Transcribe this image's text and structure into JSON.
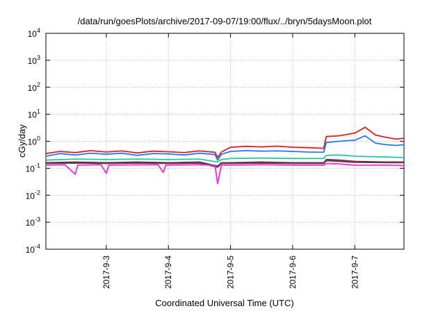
{
  "chart_data": {
    "type": "line",
    "title": "/data/run/goesPlots/archive/2017-09-07/19:00/flux/../bryn/5daysMoon.plot",
    "xlabel": "Coordinated Universal Time (UTC)",
    "ylabel": "cGy/day",
    "yscale": "log",
    "ylim": [
      0.0001,
      10000
    ],
    "xlim": [
      "2017-09-02 00:40",
      "2017-09-07 19:00"
    ],
    "x_ticks": [
      {
        "value": "2017-09-03",
        "label": "2017-9-3"
      },
      {
        "value": "2017-09-04",
        "label": "2017-9-4"
      },
      {
        "value": "2017-09-05",
        "label": "2017-9-5"
      },
      {
        "value": "2017-09-06",
        "label": "2017-9-6"
      },
      {
        "value": "2017-09-07",
        "label": "2017-9-7"
      }
    ],
    "y_ticks": [
      {
        "value": 0.0001,
        "base": "10",
        "exp": "-4"
      },
      {
        "value": 0.001,
        "base": "10",
        "exp": "-3"
      },
      {
        "value": 0.01,
        "base": "10",
        "exp": "-2"
      },
      {
        "value": 0.1,
        "base": "10",
        "exp": "-1"
      },
      {
        "value": 1,
        "base": "10",
        "exp": "0"
      },
      {
        "value": 10,
        "base": "10",
        "exp": "1"
      },
      {
        "value": 100,
        "base": "10",
        "exp": "2"
      },
      {
        "value": 1000,
        "base": "10",
        "exp": "3"
      },
      {
        "value": 10000,
        "base": "10",
        "exp": "4"
      }
    ],
    "grid": true,
    "series": [
      {
        "color": "#e31a1c",
        "points": [
          [
            "2017-09-02 00:40",
            0.35
          ],
          [
            "2017-09-02 06:00",
            0.42
          ],
          [
            "2017-09-02 12:00",
            0.38
          ],
          [
            "2017-09-02 18:00",
            0.45
          ],
          [
            "2017-09-03 00:00",
            0.4
          ],
          [
            "2017-09-03 06:00",
            0.44
          ],
          [
            "2017-09-03 12:00",
            0.37
          ],
          [
            "2017-09-03 18:00",
            0.43
          ],
          [
            "2017-09-04 00:00",
            0.41
          ],
          [
            "2017-09-04 06:00",
            0.38
          ],
          [
            "2017-09-04 12:00",
            0.44
          ],
          [
            "2017-09-04 18:00",
            0.39
          ],
          [
            "2017-09-04 19:00",
            0.25
          ],
          [
            "2017-09-04 20:30",
            0.4
          ],
          [
            "2017-09-05 00:00",
            0.6
          ],
          [
            "2017-09-05 06:00",
            0.65
          ],
          [
            "2017-09-05 12:00",
            0.62
          ],
          [
            "2017-09-05 18:00",
            0.66
          ],
          [
            "2017-09-06 00:00",
            0.6
          ],
          [
            "2017-09-06 06:00",
            0.58
          ],
          [
            "2017-09-06 12:00",
            0.55
          ],
          [
            "2017-09-06 13:00",
            1.5
          ],
          [
            "2017-09-06 18:00",
            1.6
          ],
          [
            "2017-09-07 00:00",
            2.0
          ],
          [
            "2017-09-07 04:00",
            3.3
          ],
          [
            "2017-09-07 08:00",
            1.7
          ],
          [
            "2017-09-07 12:00",
            1.4
          ],
          [
            "2017-09-07 16:00",
            1.2
          ],
          [
            "2017-09-07 19:00",
            1.3
          ]
        ]
      },
      {
        "color": "#1f78ff",
        "points": [
          [
            "2017-09-02 00:40",
            0.28
          ],
          [
            "2017-09-02 06:00",
            0.35
          ],
          [
            "2017-09-02 12:00",
            0.31
          ],
          [
            "2017-09-02 18:00",
            0.36
          ],
          [
            "2017-09-03 00:00",
            0.33
          ],
          [
            "2017-09-03 06:00",
            0.36
          ],
          [
            "2017-09-03 12:00",
            0.3
          ],
          [
            "2017-09-03 18:00",
            0.35
          ],
          [
            "2017-09-04 00:00",
            0.34
          ],
          [
            "2017-09-04 06:00",
            0.31
          ],
          [
            "2017-09-04 12:00",
            0.36
          ],
          [
            "2017-09-04 18:00",
            0.32
          ],
          [
            "2017-09-04 19:00",
            0.2
          ],
          [
            "2017-09-04 20:30",
            0.33
          ],
          [
            "2017-09-05 00:00",
            0.42
          ],
          [
            "2017-09-05 06:00",
            0.45
          ],
          [
            "2017-09-05 12:00",
            0.43
          ],
          [
            "2017-09-05 18:00",
            0.44
          ],
          [
            "2017-09-06 00:00",
            0.42
          ],
          [
            "2017-09-06 06:00",
            0.4
          ],
          [
            "2017-09-06 12:00",
            0.39
          ],
          [
            "2017-09-06 13:00",
            0.9
          ],
          [
            "2017-09-06 18:00",
            1.0
          ],
          [
            "2017-09-07 00:00",
            1.1
          ],
          [
            "2017-09-07 04:00",
            1.6
          ],
          [
            "2017-09-07 08:00",
            0.85
          ],
          [
            "2017-09-07 12:00",
            0.75
          ],
          [
            "2017-09-07 16:00",
            0.7
          ],
          [
            "2017-09-07 19:00",
            0.75
          ]
        ]
      },
      {
        "color": "#20c9a0",
        "points": [
          [
            "2017-09-02 00:40",
            0.2
          ],
          [
            "2017-09-02 12:00",
            0.22
          ],
          [
            "2017-09-03 00:00",
            0.21
          ],
          [
            "2017-09-03 12:00",
            0.22
          ],
          [
            "2017-09-04 00:00",
            0.21
          ],
          [
            "2017-09-04 12:00",
            0.22
          ],
          [
            "2017-09-04 19:00",
            0.17
          ],
          [
            "2017-09-04 20:30",
            0.21
          ],
          [
            "2017-09-05 00:00",
            0.23
          ],
          [
            "2017-09-05 12:00",
            0.24
          ],
          [
            "2017-09-06 00:00",
            0.23
          ],
          [
            "2017-09-06 12:00",
            0.23
          ],
          [
            "2017-09-06 13:00",
            0.3
          ],
          [
            "2017-09-06 18:00",
            0.31
          ],
          [
            "2017-09-07 00:00",
            0.28
          ],
          [
            "2017-09-07 12:00",
            0.26
          ],
          [
            "2017-09-07 19:00",
            0.25
          ]
        ]
      },
      {
        "color": "#8b1a3a",
        "points": [
          [
            "2017-09-02 00:40",
            0.16
          ],
          [
            "2017-09-02 12:00",
            0.17
          ],
          [
            "2017-09-03 00:00",
            0.16
          ],
          [
            "2017-09-03 12:00",
            0.17
          ],
          [
            "2017-09-04 00:00",
            0.16
          ],
          [
            "2017-09-04 12:00",
            0.17
          ],
          [
            "2017-09-04 19:00",
            0.12
          ],
          [
            "2017-09-04 20:30",
            0.16
          ],
          [
            "2017-09-05 00:00",
            0.16
          ],
          [
            "2017-09-05 12:00",
            0.17
          ],
          [
            "2017-09-06 00:00",
            0.16
          ],
          [
            "2017-09-06 12:00",
            0.16
          ],
          [
            "2017-09-06 13:00",
            0.21
          ],
          [
            "2017-09-06 18:00",
            0.2
          ],
          [
            "2017-09-07 00:00",
            0.18
          ],
          [
            "2017-09-07 12:00",
            0.17
          ],
          [
            "2017-09-07 19:00",
            0.17
          ]
        ]
      },
      {
        "color": "#4a4a4a",
        "points": [
          [
            "2017-09-02 00:40",
            0.15
          ],
          [
            "2017-09-02 12:00",
            0.155
          ],
          [
            "2017-09-03 00:00",
            0.15
          ],
          [
            "2017-09-03 12:00",
            0.155
          ],
          [
            "2017-09-04 00:00",
            0.15
          ],
          [
            "2017-09-04 12:00",
            0.155
          ],
          [
            "2017-09-04 19:00",
            0.11
          ],
          [
            "2017-09-04 20:30",
            0.15
          ],
          [
            "2017-09-05 00:00",
            0.15
          ],
          [
            "2017-09-05 12:00",
            0.155
          ],
          [
            "2017-09-06 00:00",
            0.15
          ],
          [
            "2017-09-06 12:00",
            0.15
          ],
          [
            "2017-09-06 13:00",
            0.19
          ],
          [
            "2017-09-06 18:00",
            0.18
          ],
          [
            "2017-09-07 00:00",
            0.165
          ],
          [
            "2017-09-07 12:00",
            0.16
          ],
          [
            "2017-09-07 19:00",
            0.16
          ]
        ]
      },
      {
        "color": "#ff22dd",
        "points": [
          [
            "2017-09-02 00:40",
            0.13
          ],
          [
            "2017-09-02 08:00",
            0.135
          ],
          [
            "2017-09-02 12:00",
            0.06
          ],
          [
            "2017-09-02 13:00",
            0.13
          ],
          [
            "2017-09-02 22:00",
            0.135
          ],
          [
            "2017-09-03 00:00",
            0.065
          ],
          [
            "2017-09-03 01:00",
            0.13
          ],
          [
            "2017-09-03 20:00",
            0.135
          ],
          [
            "2017-09-03 22:00",
            0.07
          ],
          [
            "2017-09-03 23:00",
            0.13
          ],
          [
            "2017-09-04 12:00",
            0.135
          ],
          [
            "2017-09-04 18:00",
            0.13
          ],
          [
            "2017-09-04 19:00",
            0.027
          ],
          [
            "2017-09-04 20:30",
            0.13
          ],
          [
            "2017-09-05 00:00",
            0.13
          ],
          [
            "2017-09-05 12:00",
            0.135
          ],
          [
            "2017-09-06 00:00",
            0.13
          ],
          [
            "2017-09-06 12:00",
            0.13
          ],
          [
            "2017-09-06 13:00",
            0.15
          ],
          [
            "2017-09-06 18:00",
            0.145
          ],
          [
            "2017-09-07 00:00",
            0.13
          ],
          [
            "2017-09-07 12:00",
            0.13
          ],
          [
            "2017-09-07 19:00",
            0.125
          ]
        ]
      }
    ]
  }
}
